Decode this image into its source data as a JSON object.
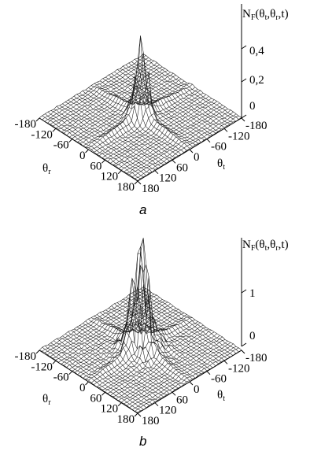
{
  "chart_data": [
    {
      "type": "surface3d",
      "panel_label": "a",
      "zlabel_main": "N",
      "zlabel_sub": "F",
      "zlabel_rest_1": "(θ",
      "zlabel_rest_t": "t",
      "zlabel_rest_2": ",θ",
      "zlabel_rest_r": "r",
      "zlabel_rest_3": ",t)",
      "z_ticks": [
        "0",
        "0,2",
        "0,4"
      ],
      "z_tick_values": [
        0,
        0.2,
        0.4
      ],
      "zlim": [
        0,
        0.55
      ],
      "theta_r_label": "θ",
      "theta_r_sub": "r",
      "theta_t_label": "θ",
      "theta_t_sub": "t",
      "theta_r_ticks": [
        "-180",
        "-120",
        "-60",
        "0",
        "60",
        "120",
        "180"
      ],
      "theta_t_ticks": [
        "-180",
        "-120",
        "-60",
        "0",
        "60",
        "120",
        "180"
      ],
      "axis_range": [
        -180,
        180
      ],
      "peak_value": 0.55
    },
    {
      "type": "surface3d",
      "panel_label": "b",
      "zlabel_main": "N",
      "zlabel_sub": "F",
      "zlabel_rest_1": "(θ",
      "zlabel_rest_t": "t",
      "zlabel_rest_2": ",θ",
      "zlabel_rest_r": "r",
      "zlabel_rest_3": ",t)",
      "z_ticks": [
        "0",
        "1"
      ],
      "z_tick_values": [
        0,
        1
      ],
      "zlim": [
        0,
        1.6
      ],
      "theta_r_label": "θ",
      "theta_r_sub": "r",
      "theta_t_label": "θ",
      "theta_t_sub": "t",
      "theta_r_ticks": [
        "-180",
        "-120",
        "-60",
        "0",
        "60",
        "120",
        "180"
      ],
      "theta_t_ticks": [
        "-180",
        "-120",
        "-60",
        "0",
        "60",
        "120",
        "180"
      ],
      "axis_range": [
        -180,
        180
      ],
      "peak_value": 1.55
    }
  ]
}
